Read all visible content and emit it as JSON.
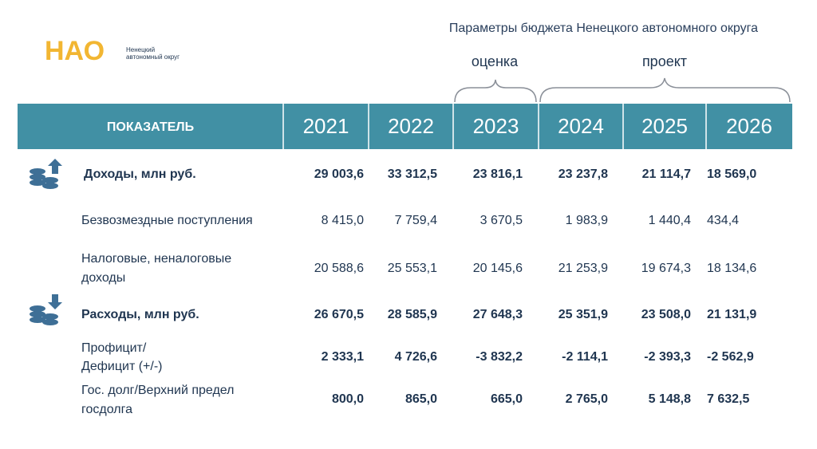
{
  "header": {
    "title": "Параметры бюджета Ненецкого автономного округа",
    "logo": {
      "mark": "НАО",
      "caption": [
        "Ненецкий",
        "автономный округ"
      ]
    },
    "estimate_label": "оценка",
    "project_label": "проект"
  },
  "table": {
    "columns": [
      "ПОКАЗАТЕЛЬ",
      "2021",
      "2022",
      "2023",
      "2024",
      "2025",
      "2026"
    ],
    "rows": [
      {
        "label": [
          "Доходы, млн руб."
        ],
        "values": [
          "29 003,6",
          "33 312,5",
          "23 816,1",
          "23 237,8",
          "21 114,7",
          "18 569,0"
        ]
      },
      {
        "label": [
          "Безвозмездные поступления"
        ],
        "values": [
          "8 415,0",
          "7 759,4",
          "3 670,5",
          "1 983,9",
          "1 440,4",
          "434,4"
        ]
      },
      {
        "label": [
          "Налоговые, неналоговые",
          "доходы"
        ],
        "values": [
          "20 588,6",
          "25 553,1",
          "20 145,6",
          "21 253,9",
          "19 674,3",
          "18 134,6"
        ]
      },
      {
        "label": [
          "Расходы, млн руб."
        ],
        "values": [
          "26 670,5",
          "28 585,9",
          "27 648,3",
          "25 351,9",
          "23 508,0",
          "21 131,9"
        ]
      },
      {
        "label": [
          "Профицит/",
          "Дефицит (+/-)"
        ],
        "values": [
          "2 333,1",
          "4 726,6",
          "-3 832,2",
          "-2 114,1",
          "-2 393,3",
          "-2 562,9"
        ]
      },
      {
        "label": [
          "Гос. долг/Верхний предел",
          "госдолга"
        ],
        "values": [
          "800,0",
          "865,0",
          "665,0",
          "2 765,0",
          "5 148,8",
          "7 632,5"
        ]
      }
    ]
  }
}
